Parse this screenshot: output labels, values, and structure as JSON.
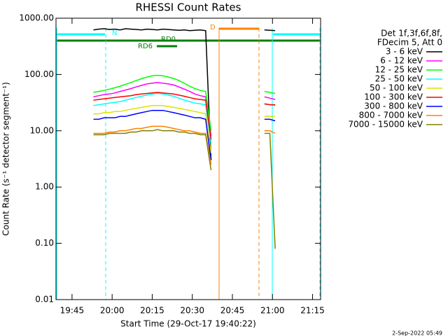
{
  "chart_data": {
    "type": "line",
    "title": "RHESSI Count Rates",
    "x_label": "Start Time (29-Oct-17 19:40:22)",
    "y_label": "Count Rate (s⁻¹ detector segment⁻¹)",
    "legend_header": [
      "Det 1f,3f,6f,8f,",
      "FDecim 5, Att 0"
    ],
    "annotations": [
      "N",
      "RD0",
      "RD6",
      "D"
    ],
    "footer": "2-Sep-2022 05:49",
    "log_y": true,
    "xlim": [
      1179,
      1278
    ],
    "xticks": [
      {
        "value": 1185,
        "label": "19:45"
      },
      {
        "value": 1200,
        "label": "20:00"
      },
      {
        "value": 1215,
        "label": "20:15"
      },
      {
        "value": 1230,
        "label": "20:30"
      },
      {
        "value": 1245,
        "label": "20:45"
      },
      {
        "value": 1260,
        "label": "21:00"
      },
      {
        "value": 1275,
        "label": "21:15"
      }
    ],
    "ylim": [
      0.01,
      1000
    ],
    "yticks": [
      0.01,
      {
        "value": 0.1,
        "label": "0.10"
      },
      {
        "value": 1,
        "label": "1.00"
      },
      {
        "value": 10,
        "label": "10.00"
      },
      {
        "value": 100,
        "label": "100.00"
      },
      {
        "value": 1000,
        "label": "1000.00"
      }
    ],
    "x": [
      1193,
      1195,
      1197,
      1199,
      1201,
      1203,
      1205,
      1207,
      1209,
      1211,
      1213,
      1215,
      1217,
      1219,
      1221,
      1223,
      1225,
      1227,
      1229,
      1231,
      1233,
      1235,
      1237,
      1247,
      1257,
      1259,
      1261
    ],
    "series": [
      {
        "name": "3 - 6 keV",
        "color": "#000000",
        "values": [
          620,
          640,
          650,
          630,
          640,
          620,
          650,
          640,
          630,
          620,
          640,
          630,
          620,
          640,
          630,
          620,
          610,
          620,
          600,
          610,
          620,
          600,
          3,
          null,
          620,
          610,
          600
        ]
      },
      {
        "name": "6 - 12 keV",
        "color": "#ff00ff",
        "values": [
          40,
          42,
          44,
          45,
          47,
          50,
          53,
          56,
          60,
          64,
          68,
          70,
          72,
          70,
          68,
          65,
          60,
          55,
          50,
          45,
          42,
          40,
          8,
          null,
          40,
          38,
          36
        ]
      },
      {
        "name": "12 - 25 keV",
        "color": "#00ff00",
        "values": [
          48,
          50,
          52,
          55,
          58,
          62,
          67,
          72,
          78,
          84,
          90,
          95,
          97,
          95,
          90,
          85,
          78,
          70,
          62,
          56,
          52,
          50,
          10,
          null,
          50,
          48,
          46
        ]
      },
      {
        "name": "25 - 50 keV",
        "color": "#00ffff",
        "values": [
          28,
          29,
          30,
          31,
          32,
          33,
          35,
          37,
          39,
          41,
          43,
          45,
          46,
          45,
          43,
          41,
          38,
          35,
          33,
          31,
          30,
          29,
          6,
          null,
          30,
          29,
          28
        ]
      },
      {
        "name": "50 - 100 keV",
        "color": "#e0e000",
        "values": [
          20,
          20,
          21,
          21,
          22,
          22,
          23,
          24,
          25,
          26,
          27,
          28,
          28,
          28,
          27,
          26,
          25,
          24,
          23,
          22,
          21,
          20,
          4,
          null,
          18,
          18,
          18
        ]
      },
      {
        "name": "100 - 300 keV",
        "color": "#ff0000",
        "values": [
          35,
          36,
          37,
          38,
          39,
          40,
          41,
          42,
          44,
          45,
          46,
          47,
          48,
          47,
          46,
          45,
          43,
          41,
          39,
          37,
          36,
          35,
          7,
          null,
          30,
          29,
          29
        ]
      },
      {
        "name": "300 - 800 keV",
        "color": "#0000ff",
        "values": [
          16,
          16,
          17,
          17,
          17,
          18,
          18,
          19,
          20,
          21,
          22,
          23,
          23,
          23,
          22,
          21,
          20,
          19,
          18,
          17,
          17,
          16,
          3,
          null,
          16,
          16,
          15
        ]
      },
      {
        "name": "800 - 7000 keV",
        "color": "#ff8000",
        "values": [
          9,
          9,
          9,
          9.5,
          9.5,
          10,
          10,
          10.5,
          11,
          11,
          11.5,
          12,
          12,
          12,
          11.5,
          11,
          10.5,
          10,
          10,
          9.5,
          9,
          9,
          2.5,
          null,
          10,
          10,
          9
        ]
      },
      {
        "name": "7000 - 15000 keV",
        "color": "#808000",
        "values": [
          8.5,
          8.5,
          8.5,
          9,
          9,
          9,
          9,
          9.5,
          9.5,
          10,
          10,
          10,
          10.5,
          10,
          10,
          10,
          9.5,
          9.5,
          9,
          9,
          8.5,
          8.5,
          2,
          null,
          9,
          9,
          0.08
        ]
      }
    ]
  }
}
